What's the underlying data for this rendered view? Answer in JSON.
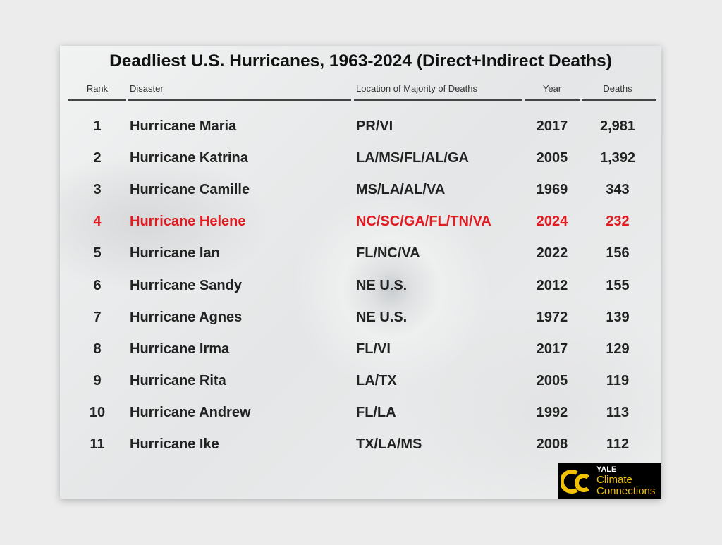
{
  "title": "Deadliest U.S. Hurricanes, 1963-2024 (Direct+Indirect Deaths)",
  "table": {
    "headers": [
      "Rank",
      "Disaster",
      "Location of Majority of Deaths",
      "Year",
      "Deaths"
    ],
    "rows": [
      [
        "1",
        "Hurricane Maria",
        "PR/VI",
        "2017",
        "2,981"
      ],
      [
        "2",
        "Hurricane Katrina",
        "LA/MS/FL/AL/GA",
        "2005",
        "1,392"
      ],
      [
        "3",
        "Hurricane Camille",
        "MS/LA/AL/VA",
        "1969",
        "343"
      ],
      [
        "4",
        "Hurricane Helene",
        "NC/SC/GA/FL/TN/VA",
        "2024",
        "232"
      ],
      [
        "5",
        "Hurricane Ian",
        "FL/NC/VA",
        "2022",
        "156"
      ],
      [
        "6",
        "Hurricane Sandy",
        "NE U.S.",
        "2012",
        "155"
      ],
      [
        "7",
        "Hurricane Agnes",
        "NE U.S.",
        "1972",
        "139"
      ],
      [
        "8",
        "Hurricane Irma",
        "FL/VI",
        "2017",
        "129"
      ],
      [
        "9",
        "Hurricane Rita",
        "LA/TX",
        "2005",
        "119"
      ],
      [
        "10",
        "Hurricane Andrew",
        "FL/LA",
        "1992",
        "113"
      ],
      [
        "11",
        "Hurricane Ike",
        "TX/LA/MS",
        "2008",
        "112"
      ]
    ],
    "highlight": {
      "row": 3,
      "color": "#e01b22"
    }
  },
  "logo": {
    "line1": "YALE",
    "line2": "Climate",
    "line3": "Connections"
  }
}
